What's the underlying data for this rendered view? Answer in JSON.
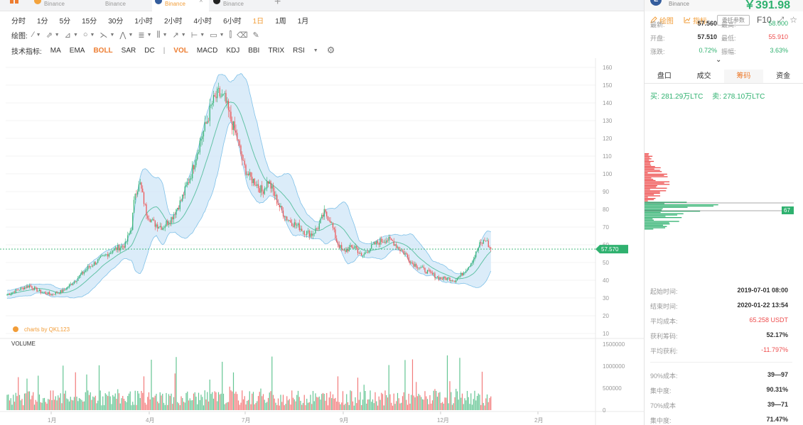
{
  "tabs": [
    {
      "label": "Binance",
      "coin_color": "#f3a33d",
      "active": false
    },
    {
      "label": "Binance",
      "coin_color": "#555555",
      "active": false
    },
    {
      "label": "Binance",
      "coin_color": "#345d9d",
      "active": true
    },
    {
      "label": "Binance",
      "coin_color": "#222222",
      "active": false
    }
  ],
  "timeframes": [
    "分时",
    "1分",
    "5分",
    "15分",
    "30分",
    "1小时",
    "2小时",
    "4小时",
    "6小时",
    "1日",
    "1周",
    "1月"
  ],
  "active_timeframe": "1日",
  "toolbar_right": {
    "draw": "绘图",
    "indicator": "指标",
    "custom": "委托参数",
    "f10": "F10"
  },
  "draw_label": "绘图:",
  "indicator_label": "技术指标:",
  "indicators": [
    "MA",
    "EMA",
    "BOLL",
    "SAR",
    "DC",
    "|",
    "VOL",
    "MACD",
    "KDJ",
    "BBI",
    "TRIX",
    "RSI"
  ],
  "active_indicators": [
    "BOLL",
    "VOL"
  ],
  "chart": {
    "current_price_label": "57.570",
    "volume_title": "VOLUME",
    "watermark": "charts by QKL123",
    "colors": {
      "up": "#2fb16f",
      "down": "#ee4d4d",
      "boll_fill": "#cfe6f7",
      "boll_line": "#7fc1e8",
      "mid_line": "#62c2a6"
    }
  },
  "chart_data": {
    "type": "candlestick",
    "price_axis": {
      "min": 10,
      "max": 160,
      "ticks": [
        160,
        150,
        140,
        130,
        120,
        110,
        100,
        90,
        80,
        70,
        60,
        50,
        40,
        30,
        20,
        10
      ]
    },
    "volume_axis": {
      "max": 1500000,
      "ticks": [
        "1500000",
        "1000000",
        "500000",
        "0"
      ]
    },
    "x_ticks": [
      "1月",
      "4月",
      "7月",
      "9月",
      "12月",
      "2月"
    ],
    "current_price": 57.57,
    "profile_label": "67",
    "price_path": [
      [
        0,
        32
      ],
      [
        10,
        35
      ],
      [
        18,
        37
      ],
      [
        25,
        34
      ],
      [
        35,
        32
      ],
      [
        45,
        34
      ],
      [
        55,
        40
      ],
      [
        65,
        47
      ],
      [
        75,
        52
      ],
      [
        85,
        57
      ],
      [
        95,
        60
      ],
      [
        100,
        70
      ],
      [
        103,
        90
      ],
      [
        107,
        94
      ],
      [
        112,
        78
      ],
      [
        118,
        72
      ],
      [
        125,
        70
      ],
      [
        132,
        75
      ],
      [
        140,
        85
      ],
      [
        148,
        100
      ],
      [
        155,
        118
      ],
      [
        160,
        128
      ],
      [
        165,
        140
      ],
      [
        170,
        145
      ],
      [
        175,
        142
      ],
      [
        180,
        130
      ],
      [
        185,
        120
      ],
      [
        190,
        105
      ],
      [
        195,
        98
      ],
      [
        200,
        95
      ],
      [
        205,
        90
      ],
      [
        210,
        96
      ],
      [
        215,
        88
      ],
      [
        220,
        80
      ],
      [
        225,
        75
      ],
      [
        230,
        72
      ],
      [
        235,
        70
      ],
      [
        240,
        67
      ],
      [
        245,
        66
      ],
      [
        250,
        70
      ],
      [
        255,
        78
      ],
      [
        260,
        74
      ],
      [
        265,
        62
      ],
      [
        270,
        56
      ],
      [
        275,
        58
      ],
      [
        280,
        59
      ],
      [
        285,
        53
      ],
      [
        290,
        57
      ],
      [
        295,
        60
      ],
      [
        300,
        62
      ],
      [
        305,
        63
      ],
      [
        310,
        62
      ],
      [
        315,
        58
      ],
      [
        320,
        55
      ],
      [
        325,
        50
      ],
      [
        330,
        48
      ],
      [
        335,
        46
      ],
      [
        340,
        44
      ],
      [
        345,
        42
      ],
      [
        350,
        41
      ],
      [
        355,
        41
      ],
      [
        360,
        40
      ],
      [
        365,
        43
      ],
      [
        370,
        47
      ],
      [
        375,
        52
      ],
      [
        380,
        60
      ],
      [
        385,
        63
      ],
      [
        388,
        58
      ]
    ]
  },
  "right_panel": {
    "exchange": "Binance",
    "big_price": "￥391.98",
    "stats": [
      {
        "k": "最新:",
        "v": "57.560",
        "k2": "最高:",
        "v2": "58.000",
        "c2": "green"
      },
      {
        "k": "开盘:",
        "v": "57.510",
        "k2": "最低:",
        "v2": "55.910",
        "c2": "red"
      },
      {
        "k": "涨跌:",
        "v": "0.72%",
        "c": "green",
        "k2": "振幅:",
        "v2": "3.63%",
        "c2": "green"
      }
    ],
    "tabs": [
      "盘口",
      "成交",
      "筹码",
      "资金"
    ],
    "active_tab": "筹码",
    "buy": "买: 281.29万LTC",
    "sell": "卖: 278.10万LTC",
    "info": [
      {
        "k": "起始时间:",
        "v": "2019-07-01 08:00"
      },
      {
        "k": "结束时间:",
        "v": "2020-01-22 13:54"
      },
      {
        "k": "平均成本:",
        "v": "65.258 USDT",
        "red": true
      },
      {
        "k": "获利筹码:",
        "v": "52.17%"
      },
      {
        "k": "平均获利:",
        "v": "-11.797%",
        "red": true
      },
      {
        "k": "90%成本:",
        "v": "39—97"
      },
      {
        "k": "集中度:",
        "v": "90.31%"
      },
      {
        "k": "70%成本",
        "v": "39—71"
      },
      {
        "k": "集中度:",
        "v": "71.47%"
      }
    ]
  }
}
